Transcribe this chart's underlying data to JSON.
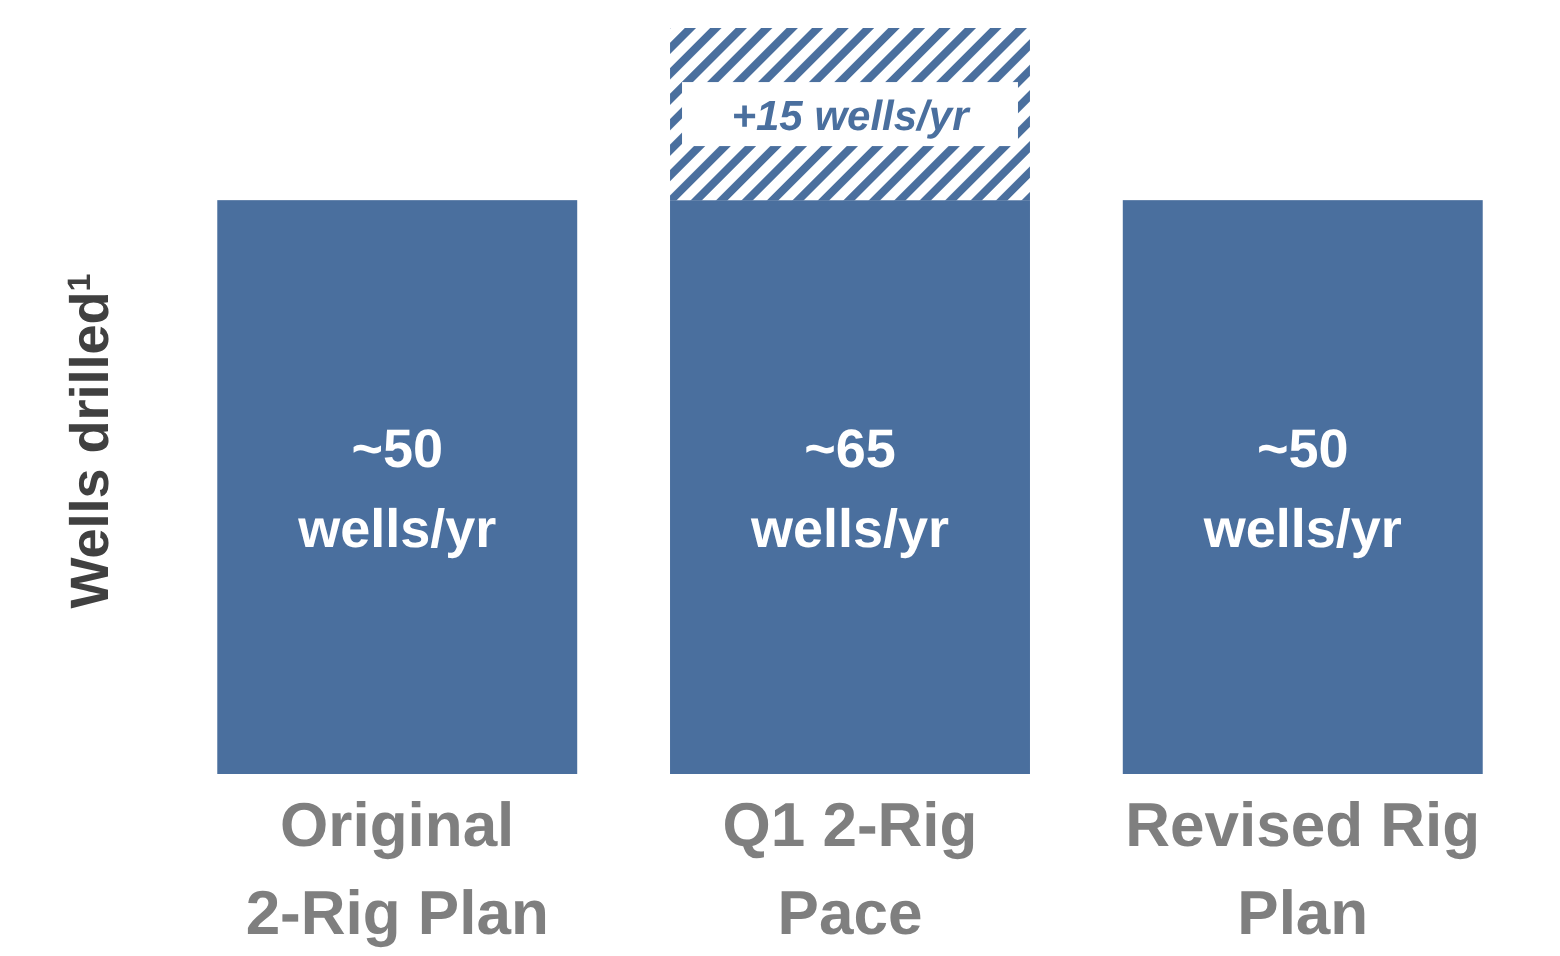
{
  "chart_data": {
    "type": "bar",
    "stacked": true,
    "ylabel": "Wells drilled$^{1}$",
    "categories": [
      "Original\n2-Rig Plan",
      "Q1 2-Rig\nPace",
      "Revised Rig\nPlan"
    ],
    "series": [
      {
        "color": "#4a6f9e",
        "values": [
          50,
          50,
          50
        ]
      },
      {
        "color": "#4a6f9e",
        "values": [
          null,
          15,
          null
        ],
        "value_labels": [
          null,
          "+15 wells/yr",
          null
        ]
      }
    ],
    "totals": [
      "~50 wells/yr",
      "~65 wells/yr",
      "~50 wells/yr"
    ]
  }
}
